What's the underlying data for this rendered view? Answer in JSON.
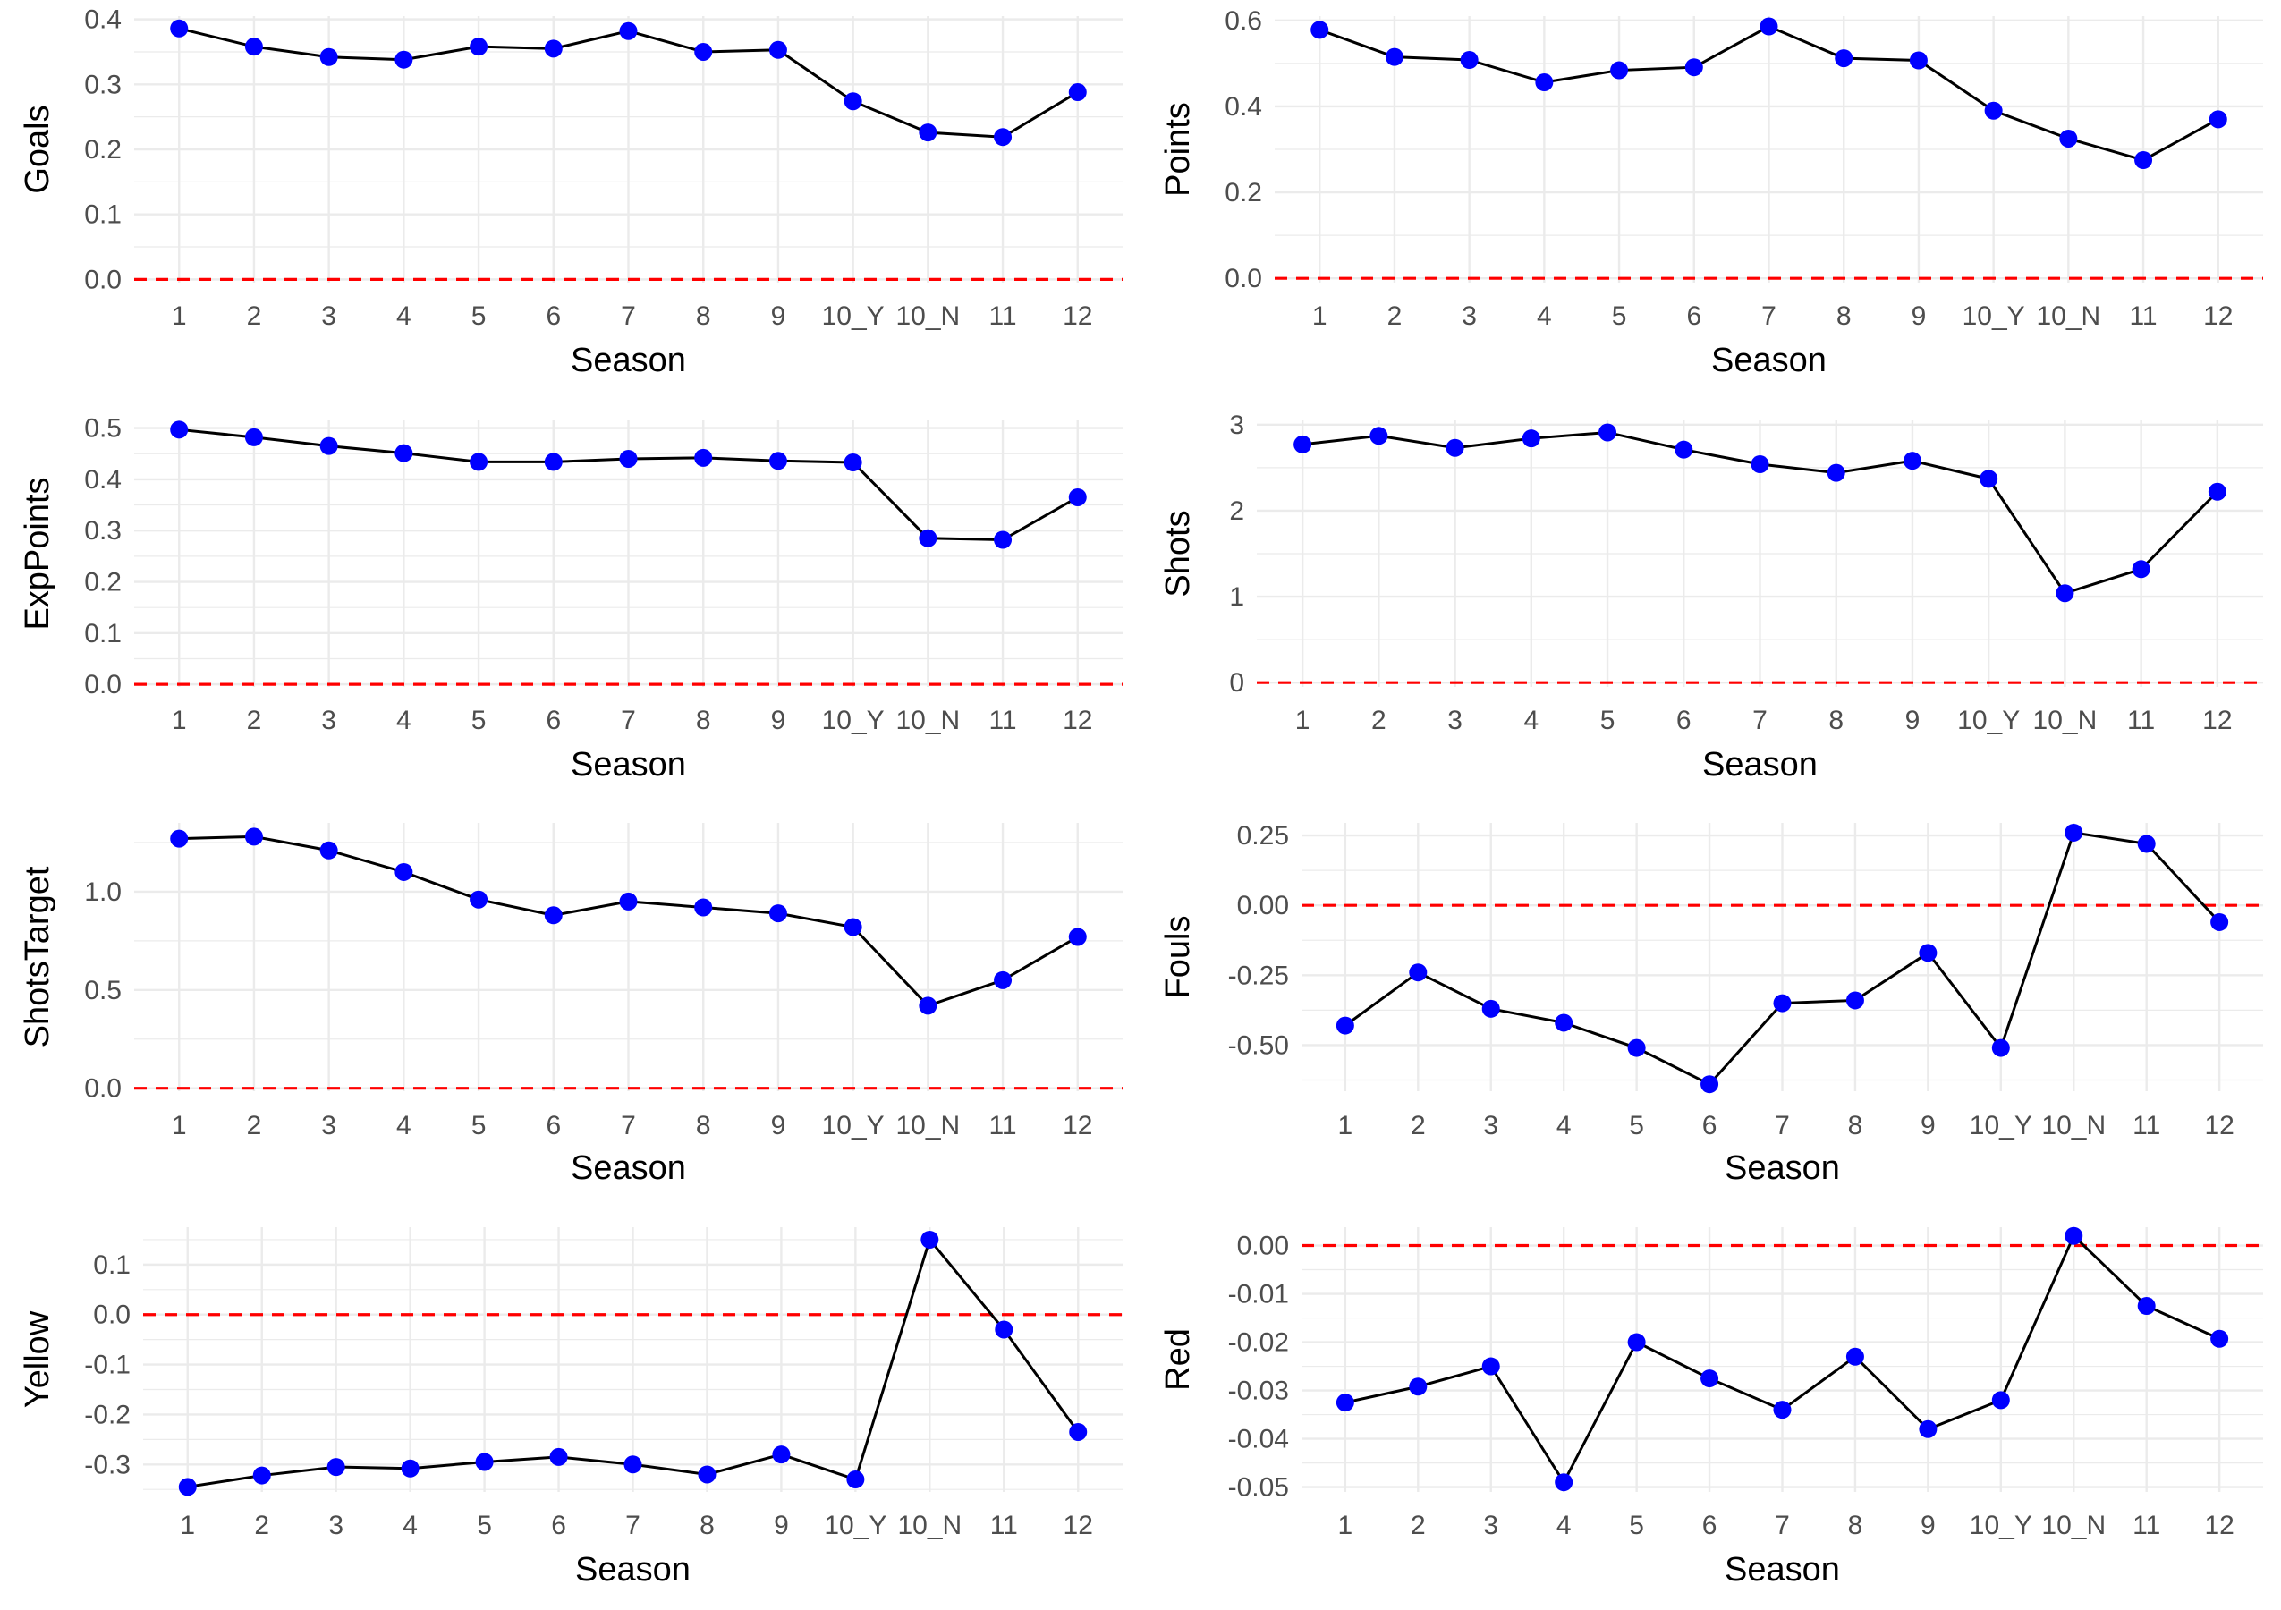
{
  "colors": {
    "point": "#0000FF",
    "line": "#000000",
    "reference": "#FF0000",
    "grid": "#EBEBEB",
    "tick_text": "#4D4D4D",
    "axis_title": "#000000"
  },
  "chart_data": [
    {
      "type": "line",
      "title": "",
      "xlabel": "Season",
      "ylabel": "Goals",
      "categories": [
        "1",
        "2",
        "3",
        "4",
        "5",
        "6",
        "7",
        "8",
        "9",
        "10_Y",
        "10_N",
        "11",
        "12"
      ],
      "series": [
        {
          "values": [
            0.386,
            0.358,
            0.342,
            0.338,
            0.358,
            0.355,
            0.382,
            0.35,
            0.353,
            0.274,
            0.226,
            0.219,
            0.288
          ]
        }
      ],
      "reference_line": {
        "y": 0,
        "style": "dashed"
      },
      "ylim": [
        -0.005,
        0.405
      ],
      "yticks": [
        0,
        0.1,
        0.2,
        0.3,
        0.4
      ],
      "ytick_labels": [
        "0.0",
        "0.1",
        "0.2",
        "0.3",
        "0.4"
      ],
      "grid": true,
      "legend": "none"
    },
    {
      "type": "line",
      "title": "",
      "xlabel": "Season",
      "ylabel": "Points",
      "categories": [
        "1",
        "2",
        "3",
        "4",
        "5",
        "6",
        "7",
        "8",
        "9",
        "10_Y",
        "10_N",
        "11",
        "12"
      ],
      "series": [
        {
          "values": [
            0.578,
            0.515,
            0.508,
            0.456,
            0.484,
            0.491,
            0.586,
            0.512,
            0.507,
            0.39,
            0.325,
            0.275,
            0.37
          ]
        }
      ],
      "reference_line": {
        "y": 0,
        "style": "dashed"
      },
      "ylim": [
        -0.01,
        0.61
      ],
      "yticks": [
        0,
        0.2,
        0.4,
        0.6
      ],
      "ytick_labels": [
        "0.0",
        "0.2",
        "0.4",
        "0.6"
      ],
      "grid": true,
      "legend": "none"
    },
    {
      "type": "line",
      "title": "",
      "xlabel": "Season",
      "ylabel": "ExpPoints",
      "categories": [
        "1",
        "2",
        "3",
        "4",
        "5",
        "6",
        "7",
        "8",
        "9",
        "10_Y",
        "10_N",
        "11",
        "12"
      ],
      "series": [
        {
          "values": [
            0.497,
            0.482,
            0.465,
            0.451,
            0.434,
            0.434,
            0.44,
            0.442,
            0.436,
            0.433,
            0.285,
            0.282,
            0.365
          ]
        }
      ],
      "reference_line": {
        "y": 0,
        "style": "dashed"
      },
      "ylim": [
        -0.005,
        0.515
      ],
      "yticks": [
        0,
        0.1,
        0.2,
        0.3,
        0.4,
        0.5
      ],
      "ytick_labels": [
        "0.0",
        "0.1",
        "0.2",
        "0.3",
        "0.4",
        "0.5"
      ],
      "grid": true,
      "legend": "none"
    },
    {
      "type": "line",
      "title": "",
      "xlabel": "Season",
      "ylabel": "Shots",
      "categories": [
        "1",
        "2",
        "3",
        "4",
        "5",
        "6",
        "7",
        "8",
        "9",
        "10_Y",
        "10_N",
        "11",
        "12"
      ],
      "series": [
        {
          "values": [
            2.77,
            2.87,
            2.73,
            2.84,
            2.91,
            2.71,
            2.54,
            2.44,
            2.58,
            2.37,
            1.04,
            1.32,
            2.22
          ]
        }
      ],
      "reference_line": {
        "y": 0,
        "style": "dashed"
      },
      "ylim": [
        -0.05,
        3.05
      ],
      "yticks": [
        0,
        1,
        2,
        3
      ],
      "ytick_labels": [
        "0",
        "1",
        "2",
        "3"
      ],
      "grid": true,
      "legend": "none"
    },
    {
      "type": "line",
      "title": "",
      "xlabel": "Season",
      "ylabel": "ShotsTarget",
      "categories": [
        "1",
        "2",
        "3",
        "4",
        "5",
        "6",
        "7",
        "8",
        "9",
        "10_Y",
        "10_N",
        "11",
        "12"
      ],
      "series": [
        {
          "values": [
            1.27,
            1.28,
            1.21,
            1.1,
            0.96,
            0.88,
            0.95,
            0.92,
            0.89,
            0.82,
            0.42,
            0.55,
            0.77
          ]
        }
      ],
      "reference_line": {
        "y": 0,
        "style": "dashed"
      },
      "ylim": [
        -0.015,
        1.35
      ],
      "yticks": [
        0,
        0.5,
        1.0
      ],
      "ytick_labels": [
        "0.0",
        "0.5",
        "1.0"
      ],
      "grid": true,
      "legend": "none"
    },
    {
      "type": "line",
      "title": "",
      "xlabel": "Season",
      "ylabel": "Fouls",
      "categories": [
        "1",
        "2",
        "3",
        "4",
        "5",
        "6",
        "7",
        "8",
        "9",
        "10_Y",
        "10_N",
        "11",
        "12"
      ],
      "series": [
        {
          "values": [
            -0.43,
            -0.24,
            -0.37,
            -0.42,
            -0.51,
            -0.64,
            -0.35,
            -0.34,
            -0.17,
            -0.51,
            0.26,
            0.22,
            -0.06
          ]
        }
      ],
      "reference_line": {
        "y": 0,
        "style": "dashed"
      },
      "ylim": [
        -0.665,
        0.295
      ],
      "yticks": [
        -0.5,
        -0.25,
        0,
        0.25
      ],
      "ytick_labels": [
        "-0.50",
        "-0.25",
        "0.00",
        "0.25"
      ],
      "grid": true,
      "legend": "none"
    },
    {
      "type": "line",
      "title": "",
      "xlabel": "Season",
      "ylabel": "Yellow",
      "categories": [
        "1",
        "2",
        "3",
        "4",
        "5",
        "6",
        "7",
        "8",
        "9",
        "10_Y",
        "10_N",
        "11",
        "12"
      ],
      "series": [
        {
          "values": [
            -0.345,
            -0.322,
            -0.305,
            -0.308,
            -0.295,
            -0.285,
            -0.3,
            -0.32,
            -0.28,
            -0.33,
            0.15,
            -0.03,
            -0.235
          ]
        }
      ],
      "reference_line": {
        "y": 0,
        "style": "dashed"
      },
      "ylim": [
        -0.355,
        0.175
      ],
      "yticks": [
        -0.3,
        -0.2,
        -0.1,
        0,
        0.1
      ],
      "ytick_labels": [
        "-0.3",
        "-0.2",
        "-0.1",
        "0.0",
        "0.1"
      ],
      "grid": true,
      "legend": "none"
    },
    {
      "type": "line",
      "title": "",
      "xlabel": "Season",
      "ylabel": "Red",
      "categories": [
        "1",
        "2",
        "3",
        "4",
        "5",
        "6",
        "7",
        "8",
        "9",
        "10_Y",
        "10_N",
        "11",
        "12"
      ],
      "series": [
        {
          "values": [
            -0.0325,
            -0.0292,
            -0.025,
            -0.049,
            -0.02,
            -0.0275,
            -0.034,
            -0.023,
            -0.038,
            -0.032,
            0.002,
            -0.0125,
            -0.0193
          ]
        }
      ],
      "reference_line": {
        "y": 0,
        "style": "dashed"
      },
      "ylim": [
        -0.051,
        0.0038
      ],
      "yticks": [
        -0.05,
        -0.04,
        -0.03,
        -0.02,
        -0.01,
        0
      ],
      "ytick_labels": [
        "-0.05",
        "-0.04",
        "-0.03",
        "-0.02",
        "-0.01",
        "0.00"
      ],
      "grid": true,
      "legend": "none"
    }
  ]
}
